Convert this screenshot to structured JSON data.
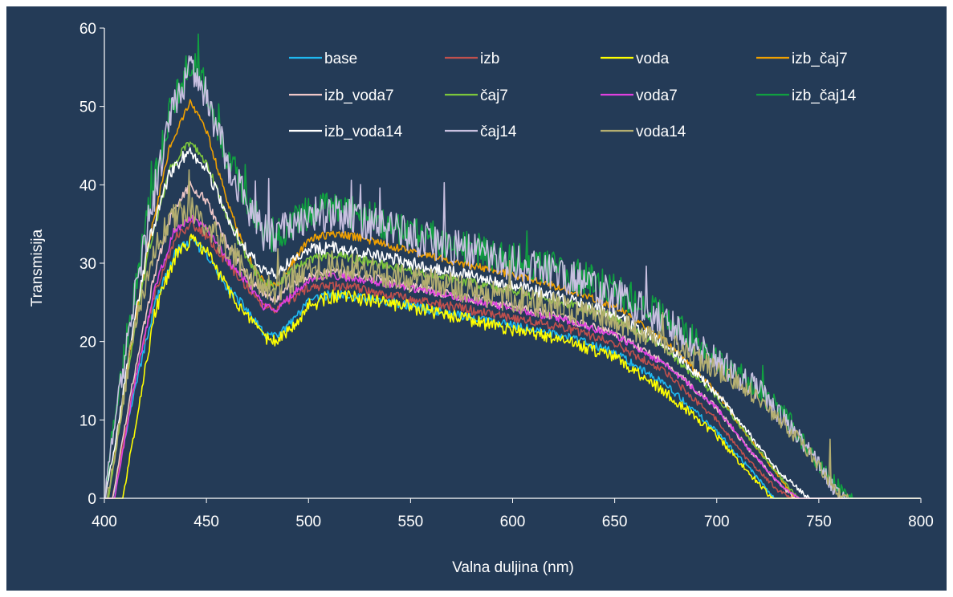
{
  "chart_data": {
    "type": "line",
    "title": "",
    "xlabel": "Valna duljina (nm)",
    "ylabel": "Transmisija",
    "xlim": [
      400,
      800
    ],
    "ylim": [
      0,
      60
    ],
    "xticks": [
      400,
      450,
      500,
      550,
      600,
      650,
      700,
      750,
      800
    ],
    "yticks": [
      0,
      10,
      20,
      30,
      40,
      50,
      60
    ],
    "grid": false,
    "background": "#243b57",
    "legend_position": "top-right inside plot",
    "series": [
      {
        "name": "base",
        "color": "#1fb8f0",
        "noise": 0.6,
        "points": [
          [
            404,
            0
          ],
          [
            415,
            14
          ],
          [
            425,
            25
          ],
          [
            435,
            31.5
          ],
          [
            443,
            33
          ],
          [
            450,
            31
          ],
          [
            460,
            27
          ],
          [
            470,
            24
          ],
          [
            478,
            21
          ],
          [
            484,
            20.6
          ],
          [
            492,
            22.5
          ],
          [
            500,
            25
          ],
          [
            510,
            26
          ],
          [
            520,
            25.8
          ],
          [
            550,
            24.6
          ],
          [
            600,
            22
          ],
          [
            625,
            20.8
          ],
          [
            650,
            18.6
          ],
          [
            675,
            14.5
          ],
          [
            700,
            8.5
          ],
          [
            712,
            5
          ],
          [
            722,
            2
          ],
          [
            728,
            0
          ]
        ]
      },
      {
        "name": "izb",
        "color": "#c0504d",
        "noise": 0.6,
        "points": [
          [
            404,
            0
          ],
          [
            415,
            15
          ],
          [
            425,
            26.5
          ],
          [
            435,
            33.5
          ],
          [
            443,
            35
          ],
          [
            450,
            33.5
          ],
          [
            460,
            30
          ],
          [
            470,
            27
          ],
          [
            478,
            24.5
          ],
          [
            484,
            24
          ],
          [
            492,
            25.5
          ],
          [
            500,
            26.8
          ],
          [
            510,
            27.2
          ],
          [
            520,
            27
          ],
          [
            550,
            25.5
          ],
          [
            600,
            23
          ],
          [
            625,
            21.8
          ],
          [
            650,
            19.8
          ],
          [
            675,
            16
          ],
          [
            700,
            10
          ],
          [
            715,
            5
          ],
          [
            730,
            1
          ],
          [
            737,
            0
          ]
        ]
      },
      {
        "name": "voda",
        "color": "#ffff00",
        "noise": 0.9,
        "points": [
          [
            409,
            0
          ],
          [
            417,
            12
          ],
          [
            425,
            24
          ],
          [
            435,
            31
          ],
          [
            443,
            33
          ],
          [
            450,
            31.5
          ],
          [
            460,
            27
          ],
          [
            470,
            23
          ],
          [
            478,
            20.5
          ],
          [
            484,
            20
          ],
          [
            492,
            22
          ],
          [
            500,
            24.5
          ],
          [
            510,
            25.7
          ],
          [
            520,
            25.7
          ],
          [
            550,
            24.4
          ],
          [
            600,
            21.5
          ],
          [
            625,
            20.2
          ],
          [
            650,
            18
          ],
          [
            675,
            13.5
          ],
          [
            700,
            8
          ],
          [
            710,
            5
          ],
          [
            720,
            2
          ],
          [
            727,
            0
          ]
        ]
      },
      {
        "name": "izb_čaj7",
        "color": "#f0a000",
        "noise": 0.5,
        "points": [
          [
            402,
            0
          ],
          [
            412,
            18
          ],
          [
            422,
            33
          ],
          [
            432,
            45
          ],
          [
            442,
            50.5
          ],
          [
            450,
            47
          ],
          [
            460,
            38
          ],
          [
            470,
            31
          ],
          [
            478,
            27.5
          ],
          [
            484,
            27
          ],
          [
            492,
            30
          ],
          [
            500,
            33
          ],
          [
            512,
            33.8
          ],
          [
            525,
            33.3
          ],
          [
            550,
            31.5
          ],
          [
            600,
            28.5
          ],
          [
            625,
            26.8
          ],
          [
            650,
            24.5
          ],
          [
            675,
            20
          ],
          [
            700,
            13.5
          ],
          [
            715,
            8
          ],
          [
            730,
            3
          ],
          [
            738,
            0
          ]
        ]
      },
      {
        "name": "izb_voda7",
        "color": "#f0c8c8",
        "noise": 0.6,
        "points": [
          [
            404,
            0
          ],
          [
            414,
            15
          ],
          [
            424,
            28
          ],
          [
            433,
            36.5
          ],
          [
            442,
            40
          ],
          [
            450,
            38
          ],
          [
            460,
            32.5
          ],
          [
            470,
            28.5
          ],
          [
            478,
            26
          ],
          [
            484,
            25.5
          ],
          [
            492,
            27.5
          ],
          [
            500,
            28.5
          ],
          [
            512,
            28.8
          ],
          [
            525,
            28.4
          ],
          [
            550,
            27
          ],
          [
            600,
            24.5
          ],
          [
            625,
            23
          ],
          [
            650,
            21
          ],
          [
            675,
            17.2
          ],
          [
            700,
            11.5
          ],
          [
            715,
            6.5
          ],
          [
            730,
            2
          ],
          [
            738,
            0
          ]
        ]
      },
      {
        "name": "čaj7",
        "color": "#7cc63c",
        "noise": 0.6,
        "points": [
          [
            402,
            0
          ],
          [
            412,
            17
          ],
          [
            422,
            32
          ],
          [
            432,
            42
          ],
          [
            442,
            45.5
          ],
          [
            450,
            43
          ],
          [
            460,
            36
          ],
          [
            470,
            30.5
          ],
          [
            478,
            27.5
          ],
          [
            484,
            27
          ],
          [
            492,
            29
          ],
          [
            500,
            30.5
          ],
          [
            512,
            31
          ],
          [
            525,
            30.5
          ],
          [
            550,
            29
          ],
          [
            600,
            26.5
          ],
          [
            625,
            25
          ],
          [
            650,
            23
          ],
          [
            675,
            19
          ],
          [
            700,
            13
          ],
          [
            715,
            8
          ],
          [
            730,
            3
          ],
          [
            740,
            0
          ]
        ]
      },
      {
        "name": "voda7",
        "color": "#e040e0",
        "noise": 0.5,
        "points": [
          [
            405,
            0
          ],
          [
            415,
            15
          ],
          [
            425,
            27
          ],
          [
            434,
            34
          ],
          [
            442,
            35.8
          ],
          [
            450,
            34.5
          ],
          [
            460,
            30.5
          ],
          [
            470,
            27.5
          ],
          [
            478,
            24.5
          ],
          [
            484,
            24
          ],
          [
            492,
            26
          ],
          [
            500,
            27.8
          ],
          [
            512,
            28.3
          ],
          [
            525,
            28
          ],
          [
            550,
            26.8
          ],
          [
            600,
            24.2
          ],
          [
            625,
            22.8
          ],
          [
            650,
            20.8
          ],
          [
            675,
            17
          ],
          [
            700,
            11.5
          ],
          [
            715,
            6.5
          ],
          [
            730,
            2
          ],
          [
            740,
            0
          ]
        ]
      },
      {
        "name": "izb_čaj14",
        "color": "#10a040",
        "noise": 2.2,
        "points": [
          [
            401,
            2
          ],
          [
            405,
            11
          ],
          [
            412,
            22
          ],
          [
            422,
            37
          ],
          [
            432,
            49
          ],
          [
            442,
            56
          ],
          [
            450,
            52
          ],
          [
            460,
            44
          ],
          [
            470,
            38
          ],
          [
            478,
            34
          ],
          [
            484,
            33.5
          ],
          [
            492,
            35
          ],
          [
            500,
            36.5
          ],
          [
            512,
            37
          ],
          [
            525,
            36.2
          ],
          [
            550,
            34
          ],
          [
            600,
            30.5
          ],
          [
            625,
            29
          ],
          [
            650,
            26.5
          ],
          [
            675,
            23
          ],
          [
            700,
            18
          ],
          [
            720,
            14
          ],
          [
            735,
            10
          ],
          [
            748,
            5
          ],
          [
            758,
            2
          ],
          [
            766,
            0
          ]
        ]
      },
      {
        "name": "izb_voda14",
        "color": "#ffffff",
        "noise": 0.8,
        "points": [
          [
            401,
            1
          ],
          [
            406,
            8
          ],
          [
            413,
            20
          ],
          [
            422,
            33
          ],
          [
            432,
            41.5
          ],
          [
            442,
            44.5
          ],
          [
            450,
            42
          ],
          [
            460,
            36
          ],
          [
            470,
            31.5
          ],
          [
            478,
            29
          ],
          [
            484,
            28.5
          ],
          [
            492,
            30.5
          ],
          [
            500,
            31.7
          ],
          [
            512,
            32
          ],
          [
            525,
            31.5
          ],
          [
            550,
            30
          ],
          [
            600,
            27.2
          ],
          [
            625,
            25.5
          ],
          [
            650,
            23.5
          ],
          [
            675,
            19.5
          ],
          [
            700,
            13.5
          ],
          [
            715,
            8.5
          ],
          [
            730,
            3.5
          ],
          [
            745,
            0
          ]
        ]
      },
      {
        "name": "čaj14",
        "color": "#c8c0e0",
        "noise": 2.4,
        "points": [
          [
            401,
            2
          ],
          [
            405,
            10
          ],
          [
            412,
            21
          ],
          [
            422,
            36
          ],
          [
            432,
            48
          ],
          [
            442,
            55
          ],
          [
            450,
            51.5
          ],
          [
            460,
            43
          ],
          [
            470,
            37.5
          ],
          [
            478,
            34
          ],
          [
            484,
            33.5
          ],
          [
            492,
            35
          ],
          [
            500,
            36
          ],
          [
            512,
            36.5
          ],
          [
            525,
            35.6
          ],
          [
            550,
            33.5
          ],
          [
            600,
            30
          ],
          [
            625,
            28.5
          ],
          [
            650,
            26
          ],
          [
            675,
            22.5
          ],
          [
            700,
            17.5
          ],
          [
            720,
            14
          ],
          [
            735,
            9.5
          ],
          [
            748,
            5
          ],
          [
            758,
            1
          ],
          [
            764,
            0
          ]
        ]
      },
      {
        "name": "voda14",
        "color": "#b4ae70",
        "noise": 1.8,
        "points": [
          [
            402,
            1
          ],
          [
            406,
            7
          ],
          [
            413,
            19
          ],
          [
            422,
            30
          ],
          [
            432,
            35.5
          ],
          [
            442,
            37
          ],
          [
            450,
            35
          ],
          [
            460,
            32
          ],
          [
            470,
            29
          ],
          [
            478,
            27
          ],
          [
            484,
            26.5
          ],
          [
            492,
            28
          ],
          [
            500,
            29.3
          ],
          [
            512,
            29.8
          ],
          [
            525,
            29.3
          ],
          [
            550,
            28
          ],
          [
            600,
            25.5
          ],
          [
            625,
            24.2
          ],
          [
            650,
            22.5
          ],
          [
            675,
            20
          ],
          [
            700,
            16.5
          ],
          [
            720,
            13
          ],
          [
            735,
            9
          ],
          [
            748,
            5
          ],
          [
            758,
            1
          ],
          [
            764,
            0
          ]
        ]
      }
    ]
  }
}
